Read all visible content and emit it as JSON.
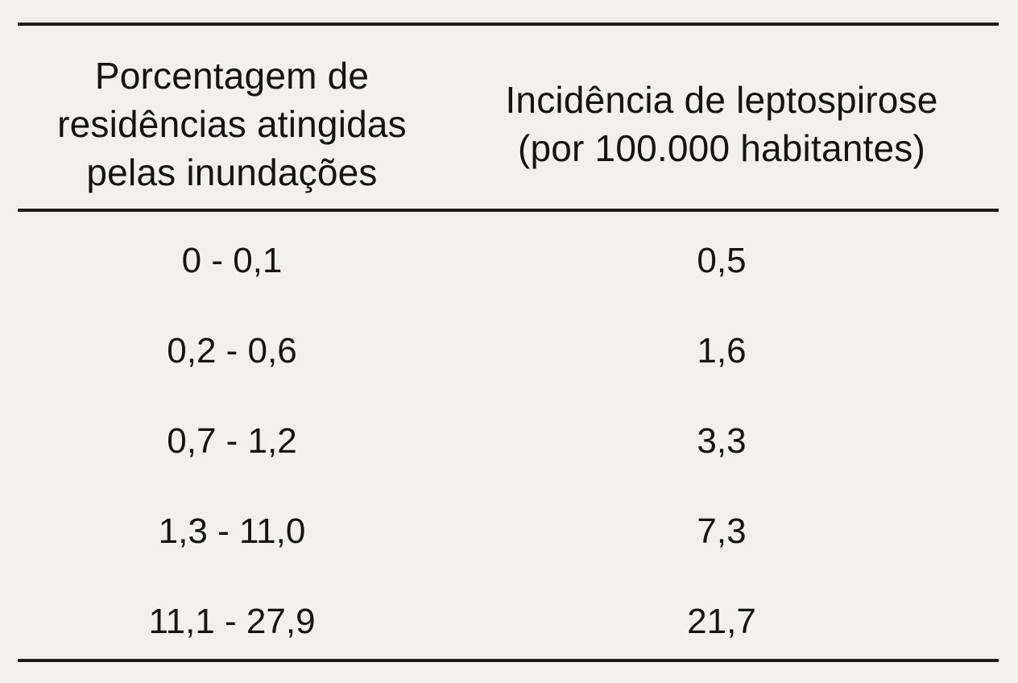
{
  "table": {
    "headers": [
      [
        "Porcentagem de",
        "residências atingidas",
        "pelas inundações"
      ],
      [
        "Incidência de leptospirose",
        "(por 100.000 habitantes)"
      ]
    ],
    "rows": [
      {
        "range": "0 - 0,1",
        "incidence": "0,5"
      },
      {
        "range": "0,2 - 0,6",
        "incidence": "1,6"
      },
      {
        "range": "0,7 - 1,2",
        "incidence": "3,3"
      },
      {
        "range": "1,3 - 11,0",
        "incidence": "7,3"
      },
      {
        "range": "11,1 - 27,9",
        "incidence": "21,7"
      }
    ]
  }
}
